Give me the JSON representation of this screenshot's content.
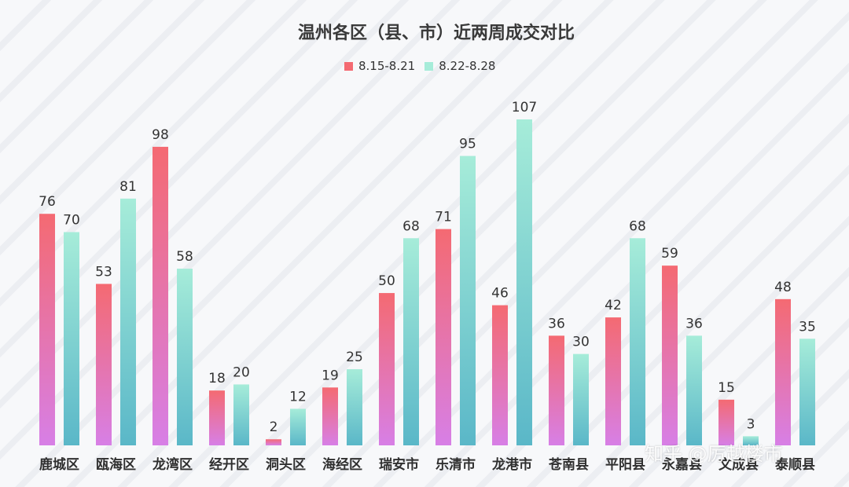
{
  "chart_data": {
    "type": "bar",
    "title": "温州各区（县、市）近两周成交对比",
    "categories": [
      "鹿城区",
      "瓯海区",
      "龙湾区",
      "经开区",
      "洞头区",
      "海经区",
      "瑞安市",
      "乐清市",
      "龙港市",
      "苍南县",
      "平阳县",
      "永嘉县",
      "文成县",
      "泰顺县"
    ],
    "series": [
      {
        "name": "8.15-8.21",
        "values": [
          76,
          53,
          98,
          18,
          2,
          19,
          50,
          71,
          46,
          36,
          42,
          59,
          15,
          48
        ],
        "color_top": "#f46a72",
        "color_bottom": "#d77fe6"
      },
      {
        "name": "8.22-8.28",
        "values": [
          70,
          81,
          58,
          20,
          12,
          25,
          68,
          95,
          107,
          30,
          68,
          36,
          3,
          35
        ],
        "color_top": "#a6ecd9",
        "color_bottom": "#5ab7c8"
      }
    ],
    "ylim": [
      0,
      107
    ],
    "grid": false,
    "legend_position": "top-center",
    "xlabel": "",
    "ylabel": ""
  },
  "watermark": "知乎 @厉越楼市"
}
